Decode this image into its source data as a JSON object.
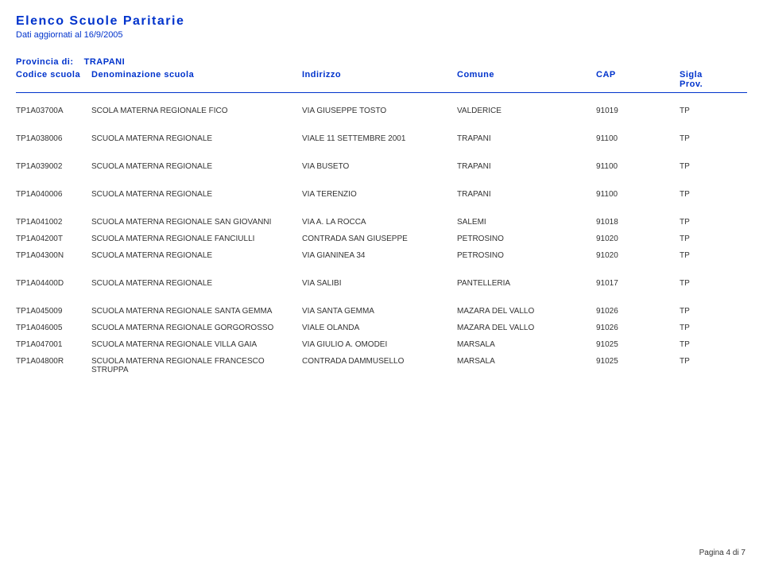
{
  "page": {
    "title": "Elenco Scuole Paritarie",
    "subtitle": "Dati aggiornati al 16/9/2005",
    "provincia_label": "Provincia di:",
    "provincia_value": "TRAPANI",
    "footer": "Pagina 4 di 7"
  },
  "columns": {
    "code": "Codice scuola",
    "name": "Denominazione scuola",
    "addr": "Indirizzo",
    "comune": "Comune",
    "cap": "CAP",
    "sigla": "Sigla Prov."
  },
  "groups": [
    [
      {
        "code": "TP1A03700A",
        "name": "SCOLA MATERNA REGIONALE FICO",
        "addr": "VIA GIUSEPPE TOSTO",
        "comune": "VALDERICE",
        "cap": "91019",
        "sigla": "TP"
      }
    ],
    [
      {
        "code": "TP1A038006",
        "name": "SCUOLA MATERNA REGIONALE",
        "addr": "VIALE 11 SETTEMBRE 2001",
        "comune": "TRAPANI",
        "cap": "91100",
        "sigla": "TP"
      }
    ],
    [
      {
        "code": "TP1A039002",
        "name": "SCUOLA MATERNA REGIONALE",
        "addr": "VIA BUSETO",
        "comune": "TRAPANI",
        "cap": "91100",
        "sigla": "TP"
      }
    ],
    [
      {
        "code": "TP1A040006",
        "name": "SCUOLA MATERNA REGIONALE",
        "addr": "VIA TERENZIO",
        "comune": "TRAPANI",
        "cap": "91100",
        "sigla": "TP"
      }
    ],
    [
      {
        "code": "TP1A041002",
        "name": "SCUOLA MATERNA REGIONALE SAN GIOVANNI",
        "addr": "VIA A. LA ROCCA",
        "comune": "SALEMI",
        "cap": "91018",
        "sigla": "TP"
      },
      {
        "code": "TP1A04200T",
        "name": "SCUOLA MATERNA REGIONALE FANCIULLI",
        "addr": "CONTRADA SAN GIUSEPPE",
        "comune": "PETROSINO",
        "cap": "91020",
        "sigla": "TP"
      },
      {
        "code": "TP1A04300N",
        "name": "SCUOLA MATERNA REGIONALE",
        "addr": "VIA GIANINEA 34",
        "comune": "PETROSINO",
        "cap": "91020",
        "sigla": "TP"
      }
    ],
    [
      {
        "code": "TP1A04400D",
        "name": "SCUOLA MATERNA REGIONALE",
        "addr": "VIA SALIBI",
        "comune": "PANTELLERIA",
        "cap": "91017",
        "sigla": "TP"
      }
    ],
    [
      {
        "code": "TP1A045009",
        "name": "SCUOLA MATERNA REGIONALE SANTA GEMMA",
        "addr": "VIA SANTA GEMMA",
        "comune": "MAZARA DEL VALLO",
        "cap": "91026",
        "sigla": "TP"
      },
      {
        "code": "TP1A046005",
        "name": "SCUOLA MATERNA REGIONALE GORGOROSSO",
        "addr": "VIALE OLANDA",
        "comune": "MAZARA DEL VALLO",
        "cap": "91026",
        "sigla": "TP"
      },
      {
        "code": "TP1A047001",
        "name": "SCUOLA MATERNA REGIONALE VILLA GAIA",
        "addr": "VIA GIULIO A. OMODEI",
        "comune": "MARSALA",
        "cap": "91025",
        "sigla": "TP"
      },
      {
        "code": "TP1A04800R",
        "name": "SCUOLA MATERNA REGIONALE FRANCESCO STRUPPA",
        "addr": "CONTRADA DAMMUSELLO",
        "comune": "MARSALA",
        "cap": "91025",
        "sigla": "TP"
      }
    ]
  ]
}
